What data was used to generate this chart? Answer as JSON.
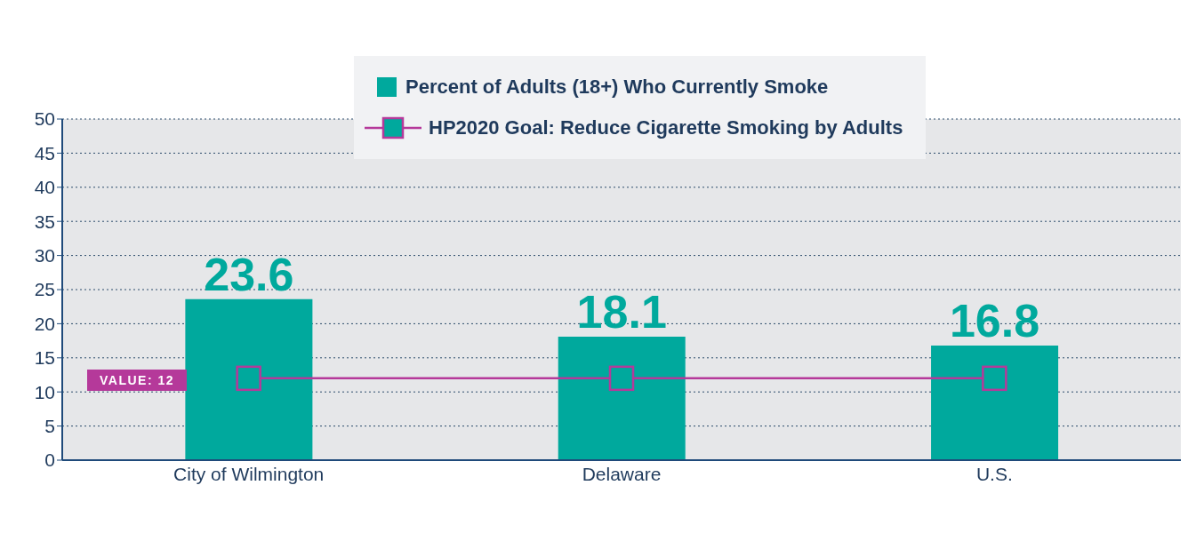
{
  "chart_data": {
    "type": "bar",
    "categories": [
      "City of Wilmington",
      "Delaware",
      "U.S."
    ],
    "series": [
      {
        "name": "Percent of Adults (18+) Who Currently Smoke",
        "color": "#00a99d",
        "values": [
          23.6,
          18.1,
          16.8
        ],
        "value_labels": [
          "23.6",
          "18.1",
          "16.8"
        ]
      },
      {
        "name": "HP2020 Goal: Reduce Cigarette Smoking by Adults",
        "type": "line",
        "color": "#b5399a",
        "values": [
          12,
          12,
          12
        ],
        "marker": "square"
      }
    ],
    "ylim": [
      0,
      50
    ],
    "yticks": [
      0,
      5,
      10,
      15,
      20,
      25,
      30,
      35,
      40,
      45,
      50
    ],
    "grid": "y",
    "legend": "top",
    "annotations": [
      "VALUE: 12"
    ]
  }
}
